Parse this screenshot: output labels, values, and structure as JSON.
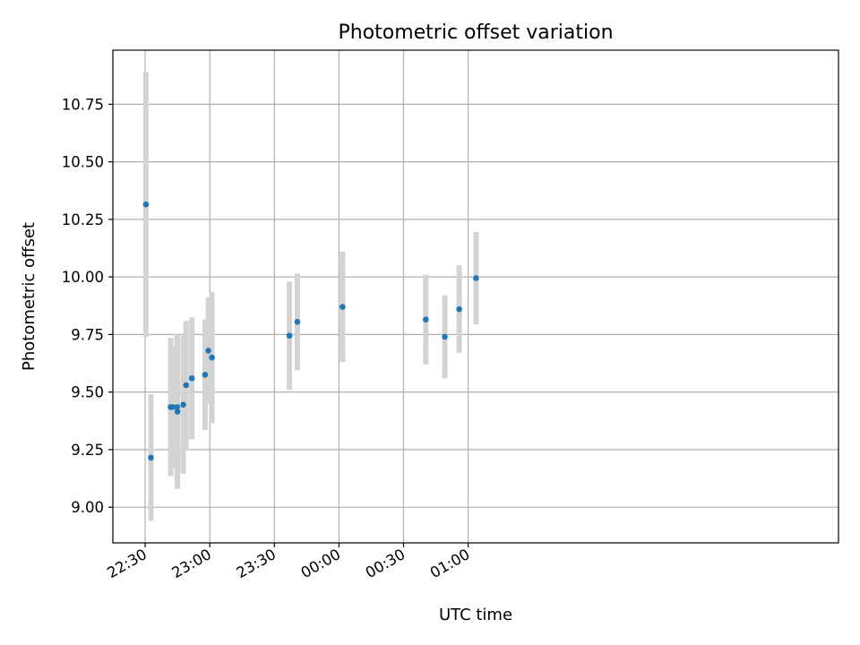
{
  "chart_data": {
    "type": "scatter",
    "title": "Photometric offset variation",
    "xlabel": "UTC time",
    "ylabel": "Photometric offset",
    "x_unit": "minutes",
    "xlim": [
      -15,
      322
    ],
    "ylim": [
      8.845,
      10.985
    ],
    "grid": true,
    "x_ticks": [
      {
        "value": 0,
        "label": "22:30"
      },
      {
        "value": 30,
        "label": "23:00"
      },
      {
        "value": 60,
        "label": "23:30"
      },
      {
        "value": 90,
        "label": "00:00"
      },
      {
        "value": 120,
        "label": "00:30"
      },
      {
        "value": 150,
        "label": "01:00"
      }
    ],
    "y_ticks": [
      {
        "value": 9.0,
        "label": "9.00"
      },
      {
        "value": 9.25,
        "label": "9.25"
      },
      {
        "value": 9.5,
        "label": "9.50"
      },
      {
        "value": 9.75,
        "label": "9.75"
      },
      {
        "value": 10.0,
        "label": "10.00"
      },
      {
        "value": 10.25,
        "label": "10.25"
      },
      {
        "value": 10.5,
        "label": "10.50"
      },
      {
        "value": 10.75,
        "label": "10.75"
      }
    ],
    "point_color": "#1f77b4",
    "error_color": "#d3d3d3",
    "points": [
      {
        "time": "22:30:20",
        "y": 10.315,
        "err": 0.575
      },
      {
        "time": "22:32:40",
        "y": 9.215,
        "err": 0.275
      },
      {
        "time": "22:41:50",
        "y": 9.435,
        "err": 0.3
      },
      {
        "time": "22:42:40",
        "y": 9.435,
        "err": 0.265
      },
      {
        "time": "22:44:50",
        "y": 9.435,
        "err": 0.315
      },
      {
        "time": "22:45:00",
        "y": 9.415,
        "err": 0.335
      },
      {
        "time": "22:47:40",
        "y": 9.445,
        "err": 0.3
      },
      {
        "time": "22:49:00",
        "y": 9.53,
        "err": 0.28
      },
      {
        "time": "22:51:40",
        "y": 9.56,
        "err": 0.265
      },
      {
        "time": "22:57:50",
        "y": 9.575,
        "err": 0.24
      },
      {
        "time": "22:59:20",
        "y": 9.68,
        "err": 0.23
      },
      {
        "time": "23:01:00",
        "y": 9.65,
        "err": 0.285
      },
      {
        "time": "23:37:00",
        "y": 9.745,
        "err": 0.235
      },
      {
        "time": "23:40:40",
        "y": 9.805,
        "err": 0.21
      },
      {
        "time": "00:01:40",
        "y": 9.87,
        "err": 0.24
      },
      {
        "time": "00:40:20",
        "y": 9.815,
        "err": 0.195
      },
      {
        "time": "00:49:10",
        "y": 9.74,
        "err": 0.18
      },
      {
        "time": "00:55:50",
        "y": 9.86,
        "err": 0.19
      },
      {
        "time": "01:03:40",
        "y": 9.995,
        "err": 0.2
      }
    ]
  }
}
